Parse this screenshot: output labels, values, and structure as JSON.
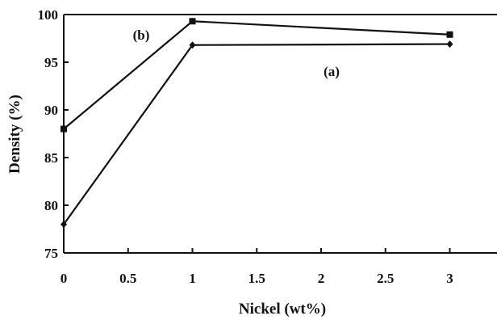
{
  "chart_data": {
    "type": "line",
    "xlabel": "Nickel (wt%)",
    "ylabel": "Density (%)",
    "xlim": [
      0,
      3.35
    ],
    "ylim": [
      75,
      100
    ],
    "xticks": [
      "0",
      "0.5",
      "1",
      "1.5",
      "2",
      "2.5",
      "3"
    ],
    "yticks": [
      "75",
      "80",
      "85",
      "90",
      "95",
      "100"
    ],
    "grid": false,
    "series": [
      {
        "name": "(a)",
        "marker": "diamond",
        "x": [
          0,
          1,
          3
        ],
        "values": [
          78,
          96.8,
          96.9
        ]
      },
      {
        "name": "(b)",
        "marker": "square",
        "x": [
          0,
          1,
          3
        ],
        "values": [
          88,
          99.3,
          97.9
        ]
      }
    ]
  }
}
